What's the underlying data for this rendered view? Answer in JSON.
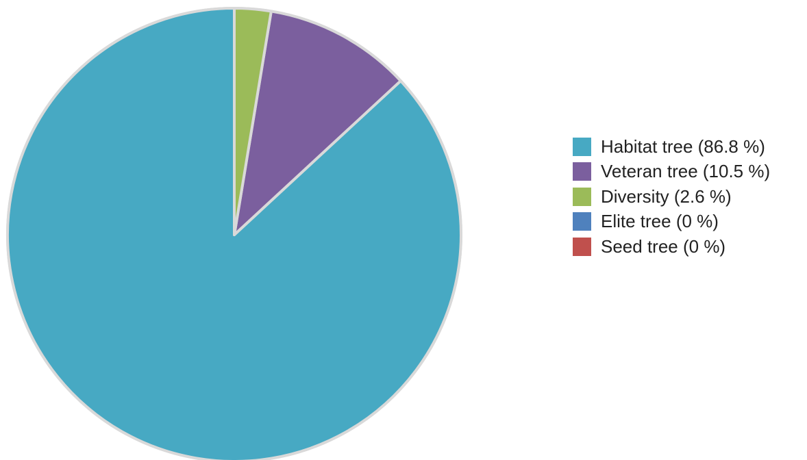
{
  "chart_data": {
    "type": "pie",
    "series": [
      {
        "label": "Habitat tree (86.8 %)",
        "value": 86.8,
        "color": "#47a9c3"
      },
      {
        "label": "Veteran tree (10.5 %)",
        "value": 10.5,
        "color": "#7b5f9e"
      },
      {
        "label": "Diversity (2.6 %)",
        "value": 2.6,
        "color": "#9bbb59"
      },
      {
        "label": "Elite tree (0 %)",
        "value": 0,
        "color": "#4f81bd"
      },
      {
        "label": "Seed tree (0 %)",
        "value": 0,
        "color": "#c0504d"
      }
    ],
    "slice_border_color": "#d9d9d9",
    "legend_position": "right"
  }
}
